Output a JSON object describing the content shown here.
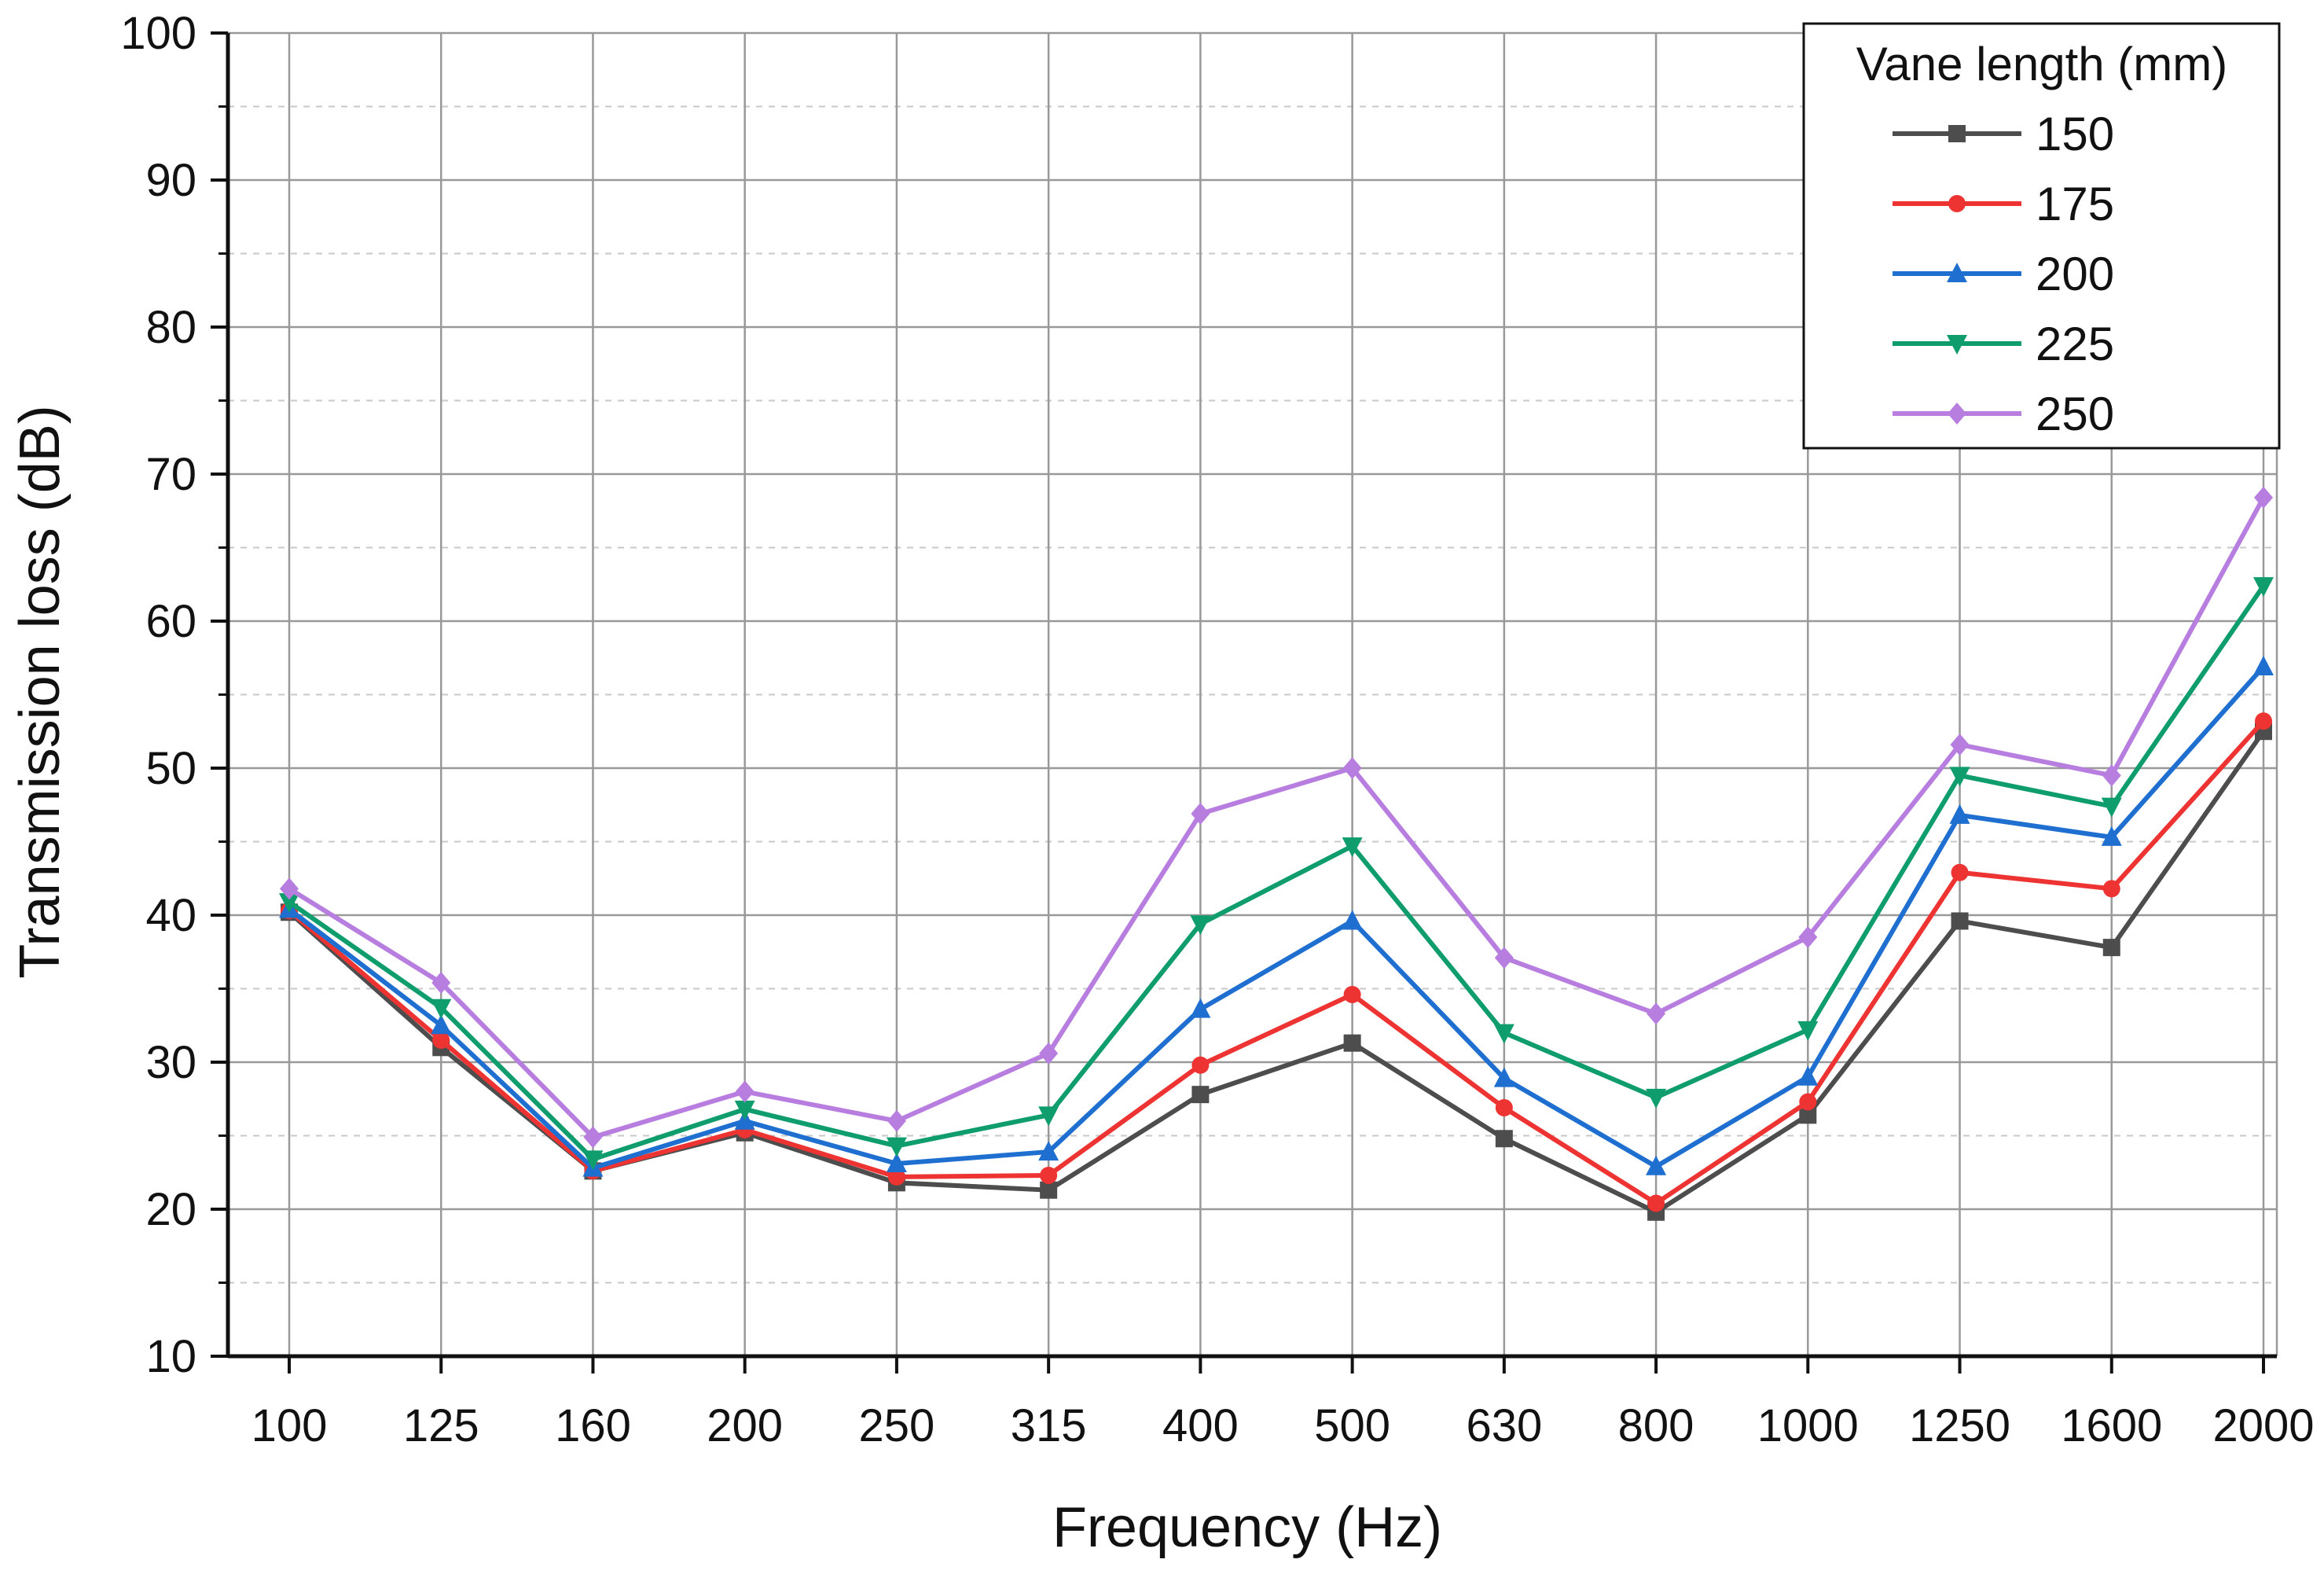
{
  "chart_data": {
    "type": "line",
    "title": "",
    "xlabel": "Frequency (Hz)",
    "ylabel": "Transmission loss (dB)",
    "categories": [
      "100",
      "125",
      "160",
      "200",
      "250",
      "315",
      "400",
      "500",
      "630",
      "800",
      "1000",
      "1250",
      "1600",
      "2000"
    ],
    "ylim": [
      10,
      100
    ],
    "yticks": [
      "10",
      "20",
      "30",
      "40",
      "50",
      "60",
      "70",
      "80",
      "90",
      "100"
    ],
    "grid": true,
    "legend": {
      "title": "Vane length (mm)",
      "position": "top-right"
    },
    "series": [
      {
        "name": "150",
        "color": "#4d4d4d",
        "marker": "square",
        "values": [
          40.2,
          31.0,
          22.6,
          25.2,
          21.8,
          21.3,
          27.8,
          31.3,
          24.8,
          19.8,
          26.4,
          39.6,
          37.8,
          52.5
        ]
      },
      {
        "name": "175",
        "color": "#ee3333",
        "marker": "circle",
        "values": [
          40.3,
          31.5,
          22.6,
          25.4,
          22.2,
          22.3,
          29.8,
          34.6,
          26.9,
          20.4,
          27.3,
          42.9,
          41.8,
          53.2
        ]
      },
      {
        "name": "200",
        "color": "#1f6fd1",
        "marker": "triangle-up",
        "values": [
          40.4,
          32.5,
          22.8,
          26.0,
          23.1,
          23.9,
          33.6,
          39.6,
          28.9,
          22.9,
          29.0,
          46.8,
          45.3,
          56.9
        ]
      },
      {
        "name": "225",
        "color": "#0f9d6e",
        "marker": "triangle-down",
        "values": [
          40.9,
          33.7,
          23.4,
          26.8,
          24.3,
          26.4,
          39.4,
          44.7,
          32.0,
          27.6,
          32.2,
          49.5,
          47.4,
          62.4
        ]
      },
      {
        "name": "250",
        "color": "#b77ee0",
        "marker": "diamond",
        "values": [
          41.8,
          35.4,
          24.9,
          28.0,
          26.0,
          30.6,
          46.9,
          50.0,
          37.1,
          33.3,
          38.5,
          51.6,
          49.5,
          68.4
        ]
      }
    ]
  }
}
